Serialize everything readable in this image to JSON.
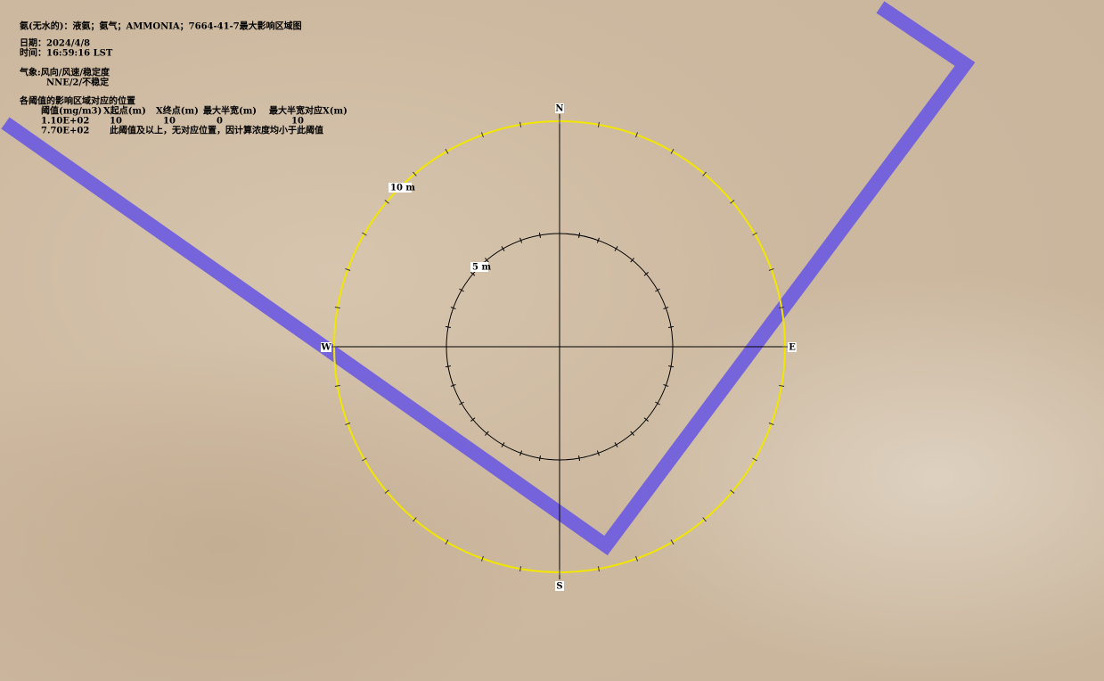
{
  "header": {
    "title": "氨(无水的)：液氨；氨气；AMMONIA；7664-41-7最大影响区域图",
    "date": "日期：2024/4/8",
    "time": "时间：16:59:16 LST",
    "weather_label": "气象:风向/风速/稳定度",
    "weather_value": "NNE/2/不稳定"
  },
  "table": {
    "title": "各阈值的影响区域对应的位置",
    "columns": [
      "阈值(mg/m3)",
      "X起点(m)",
      "X终点(m)",
      "最大半宽(m)",
      "最大半宽对应X(m)"
    ],
    "rows": [
      [
        "1.10E+02",
        "10",
        "10",
        "0",
        "10"
      ],
      [
        "7.70E+02",
        "此阈值及以上，无对应位置，因计算浓度均小于此阈值"
      ]
    ]
  },
  "compass": {
    "north": "N",
    "south": "S",
    "east": "E",
    "west": "W",
    "outer_ring": "10 m",
    "inner_ring": "5 m"
  }
}
